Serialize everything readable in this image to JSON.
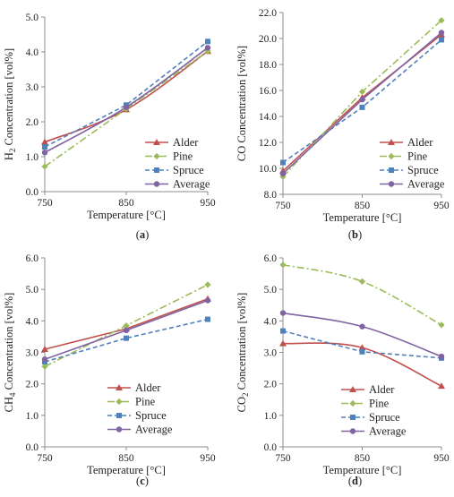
{
  "chart_data": [
    {
      "type": "line",
      "panel_label": "(a)",
      "xlabel": "Temperature [°C]",
      "ylabel_parts": [
        "H",
        "2",
        " Concentration [vol%]"
      ],
      "x": [
        750,
        850,
        950
      ],
      "x_ticks": [
        "750",
        "850",
        "950"
      ],
      "ylim": [
        0.0,
        5.0
      ],
      "y_ticks": [
        "0.0",
        "1.0",
        "2.0",
        "3.0",
        "4.0",
        "5.0"
      ],
      "grid": false,
      "legend_position": "bottom-right",
      "series": [
        {
          "name": "Alder",
          "values": [
            1.42,
            2.35,
            4.02
          ],
          "color": "#c0504d",
          "marker": "triangle",
          "dash": "solid",
          "smooth": true
        },
        {
          "name": "Pine",
          "values": [
            0.72,
            2.37,
            4.02
          ],
          "color": "#9bbb59",
          "marker": "diamond",
          "dash": "dashdot",
          "smooth": false
        },
        {
          "name": "Spruce",
          "values": [
            1.28,
            2.48,
            4.3
          ],
          "color": "#4f81bd",
          "marker": "square",
          "dash": "dash",
          "smooth": false
        },
        {
          "name": "Average",
          "values": [
            1.12,
            2.42,
            4.12
          ],
          "color": "#8064a2",
          "marker": "circle",
          "dash": "solid",
          "smooth": true
        }
      ]
    },
    {
      "type": "line",
      "panel_label": "(b)",
      "xlabel": "Temperature [°C]",
      "ylabel_parts": [
        "CO Concentration [vol%]"
      ],
      "x": [
        750,
        850,
        950
      ],
      "x_ticks": [
        "750",
        "850",
        "950"
      ],
      "ylim": [
        8.0,
        22.0
      ],
      "y_ticks": [
        "8.0",
        "10.0",
        "12.0",
        "14.0",
        "16.0",
        "18.0",
        "20.0",
        "22.0"
      ],
      "grid": false,
      "legend_position": "bottom-right",
      "series": [
        {
          "name": "Alder",
          "values": [
            9.8,
            15.45,
            20.3
          ],
          "color": "#c0504d",
          "marker": "triangle",
          "dash": "solid",
          "smooth": false
        },
        {
          "name": "Pine",
          "values": [
            9.35,
            15.9,
            21.4
          ],
          "color": "#9bbb59",
          "marker": "diamond",
          "dash": "dashdot",
          "smooth": false
        },
        {
          "name": "Spruce",
          "values": [
            10.45,
            14.7,
            19.9
          ],
          "color": "#4f81bd",
          "marker": "square",
          "dash": "dash",
          "smooth": false
        },
        {
          "name": "Average",
          "values": [
            9.6,
            15.3,
            20.45
          ],
          "color": "#8064a2",
          "marker": "circle",
          "dash": "solid",
          "smooth": false
        }
      ]
    },
    {
      "type": "line",
      "panel_label": "(c)",
      "xlabel": "Temperature [°C]",
      "ylabel_parts": [
        "CH",
        "4",
        " Concentration [vol%]"
      ],
      "x": [
        750,
        850,
        950
      ],
      "x_ticks": [
        "750",
        "850",
        "950"
      ],
      "ylim": [
        0.0,
        6.0
      ],
      "y_ticks": [
        "0.0",
        "1.0",
        "2.0",
        "3.0",
        "4.0",
        "5.0",
        "6.0"
      ],
      "grid": false,
      "legend_position": "bottom-right",
      "series": [
        {
          "name": "Alder",
          "values": [
            3.1,
            3.75,
            4.7
          ],
          "color": "#c0504d",
          "marker": "triangle",
          "dash": "solid",
          "smooth": false
        },
        {
          "name": "Pine",
          "values": [
            2.55,
            3.85,
            5.15
          ],
          "color": "#9bbb59",
          "marker": "diamond",
          "dash": "dashdot",
          "smooth": false
        },
        {
          "name": "Spruce",
          "values": [
            2.7,
            3.45,
            4.05
          ],
          "color": "#4f81bd",
          "marker": "square",
          "dash": "dash",
          "smooth": false
        },
        {
          "name": "Average",
          "values": [
            2.78,
            3.7,
            4.65
          ],
          "color": "#8064a2",
          "marker": "circle",
          "dash": "solid",
          "smooth": false
        }
      ]
    },
    {
      "type": "line",
      "panel_label": "(d)",
      "xlabel": "Temperature [°C]",
      "ylabel_parts": [
        "CO",
        "2",
        " Concentration [vol%]"
      ],
      "x": [
        750,
        850,
        950
      ],
      "x_ticks": [
        "750",
        "850",
        "950"
      ],
      "ylim": [
        0.0,
        6.0
      ],
      "y_ticks": [
        "0.0",
        "1.0",
        "2.0",
        "3.0",
        "4.0",
        "5.0",
        "6.0"
      ],
      "grid": false,
      "legend_position": "bottom-right",
      "series": [
        {
          "name": "Alder",
          "values": [
            3.28,
            3.15,
            1.93
          ],
          "color": "#c0504d",
          "marker": "triangle",
          "dash": "solid",
          "smooth": true
        },
        {
          "name": "Pine",
          "values": [
            5.78,
            5.25,
            3.87
          ],
          "color": "#9bbb59",
          "marker": "diamond",
          "dash": "dashdot",
          "smooth": true
        },
        {
          "name": "Spruce",
          "values": [
            3.68,
            3.02,
            2.82
          ],
          "color": "#4f81bd",
          "marker": "square",
          "dash": "dash",
          "smooth": false
        },
        {
          "name": "Average",
          "values": [
            4.25,
            3.82,
            2.87
          ],
          "color": "#8064a2",
          "marker": "circle",
          "dash": "solid",
          "smooth": true
        }
      ]
    }
  ]
}
